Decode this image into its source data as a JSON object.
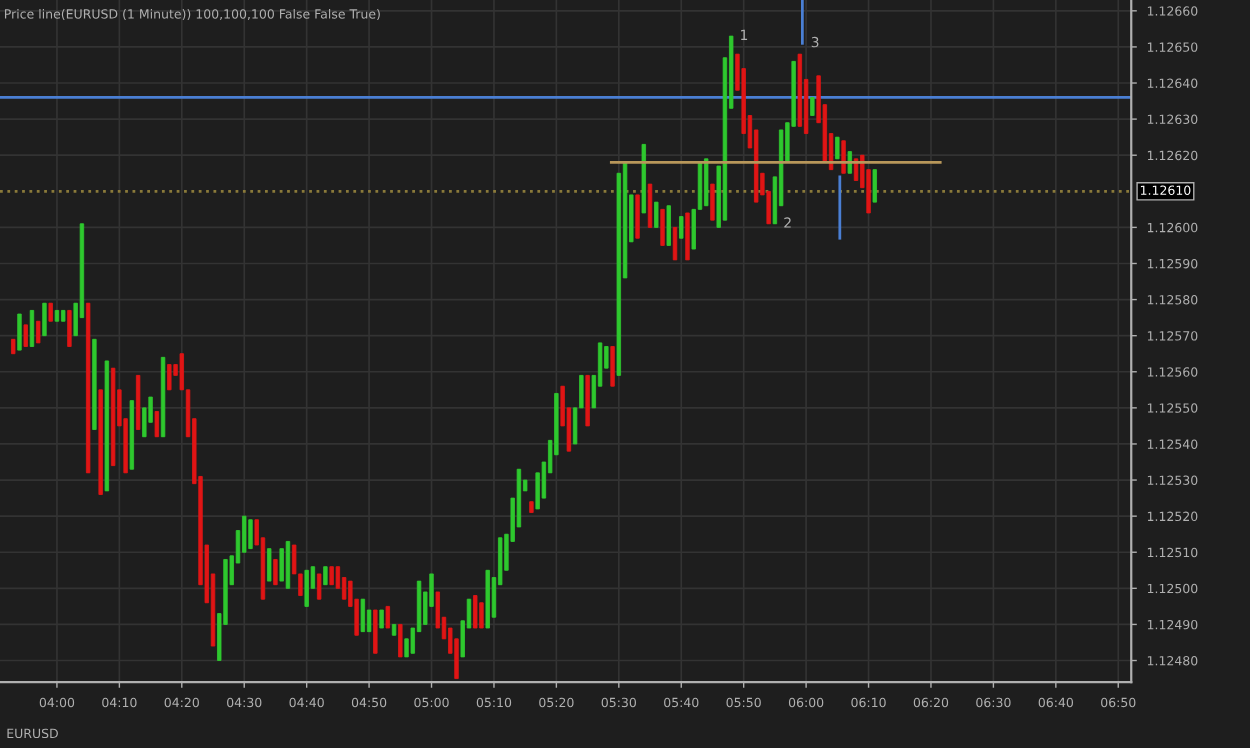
{
  "chart_data": {
    "type": "candlestick",
    "title": "Price line(EURUSD (1 Minute)) 100,100,100 False False True)",
    "colors": [
      "#e01515",
      "#2ec82e",
      "#e01515",
      "#2ec82e",
      "#e01515",
      "#2ec82e",
      "#e01515",
      "#2ec82e",
      "#2ec82e",
      "#e01515",
      "#2ec82e",
      "#2ec82e",
      "#e01515",
      "#2ec82e",
      "#e01515",
      "#2ec82e",
      "#e01515",
      "#e01515",
      "#e01515",
      "#2ec82e",
      "#e01515",
      "#2ec82e",
      "#2ec82e",
      "#e01515",
      "#2ec82e",
      "#e01515",
      "#e01515",
      "#e01515",
      "#e01515",
      "#e01515",
      "#e01515",
      "#e01515",
      "#e01515",
      "#2ec82e",
      "#2ec82e",
      "#2ec82e",
      "#2ec82e",
      "#2ec82e",
      "#2ec82e",
      "#e01515",
      "#e01515",
      "#2ec82e",
      "#e01515",
      "#2ec82e",
      "#2ec82e",
      "#e01515",
      "#e01515",
      "#2ec82e",
      "#2ec82e",
      "#e01515",
      "#2ec82e",
      "#e01515",
      "#e01515",
      "#e01515",
      "#e01515",
      "#e01515",
      "#2ec82e",
      "#2ec82e",
      "#e01515",
      "#2ec82e",
      "#e01515",
      "#2ec82e",
      "#e01515",
      "#2ec82e",
      "#2ec82e",
      "#2ec82e",
      "#2ec82e",
      "#2ec82e",
      "#e01515",
      "#e01515",
      "#e01515",
      "#e01515",
      "#2ec82e",
      "#2ec82e",
      "#e01515",
      "#e01515",
      "#2ec82e",
      "#2ec82e",
      "#2ec82e",
      "#2ec82e",
      "#2ec82e",
      "#2ec82e",
      "#2ec82e",
      "#e01515",
      "#2ec82e",
      "#2ec82e",
      "#2ec82e",
      "#2ec82e",
      "#e01515",
      "#e01515",
      "#2ec82e",
      "#2ec82e",
      "#e01515",
      "#2ec82e",
      "#2ec82e",
      "#2ec82e",
      "#e01515",
      "#2ec82e",
      "#2ec82e",
      "#2ec82e",
      "#e01515",
      "#2ec82e",
      "#e01515",
      "#2ec82e",
      "#e01515",
      "#2ec82e",
      "#e01515",
      "#2ec82e",
      "#e01515",
      "#2ec82e",
      "#2ec82e",
      "#2ec82e",
      "#e01515",
      "#2ec82e",
      "#2ec82e",
      "#2ec82e",
      "#e01515",
      "#e01515",
      "#e01515",
      "#e01515",
      "#e01515",
      "#e01515",
      "#2ec82e",
      "#2ec82e",
      "#2ec82e",
      "#2ec82e",
      "#e01515",
      "#e01515",
      "#2ec82e",
      "#e01515",
      "#e01515",
      "#e01515",
      "#2ec82e",
      "#e01515",
      "#2ec82e",
      "#e01515",
      "#e01515",
      "#e01515",
      "#2ec82e"
    ],
    "x": [
      3.8833,
      3.9,
      3.9167,
      3.9333,
      3.95,
      3.9667,
      3.9833,
      4.0,
      4.0167,
      4.0333,
      4.05,
      4.0667,
      4.0833,
      4.1,
      4.1167,
      4.1333,
      4.15,
      4.1667,
      4.1833,
      4.2,
      4.2167,
      4.2333,
      4.25,
      4.2667,
      4.2833,
      4.3,
      4.3167,
      4.3333,
      4.35,
      4.3667,
      4.3833,
      4.4,
      4.4167,
      4.4333,
      4.45,
      4.4667,
      4.4833,
      4.5,
      4.5167,
      4.5333,
      4.55,
      4.5667,
      4.5833,
      4.6,
      4.6167,
      4.6333,
      4.65,
      4.6667,
      4.6833,
      4.7,
      4.7167,
      4.7333,
      4.75,
      4.7667,
      4.7833,
      4.8,
      4.8167,
      4.8333,
      4.85,
      4.8667,
      4.8833,
      4.9,
      4.9167,
      4.9333,
      4.95,
      4.9667,
      4.9833,
      5.0,
      5.0167,
      5.0333,
      5.05,
      5.0667,
      5.0833,
      5.1,
      5.1167,
      5.1333,
      5.15,
      5.1667,
      5.1833,
      5.2,
      5.2167,
      5.2333,
      5.25,
      5.2667,
      5.2833,
      5.3,
      5.3167,
      5.3333,
      5.35,
      5.3667,
      5.3833,
      5.4,
      5.4167,
      5.4333,
      5.45,
      5.4667,
      5.4833,
      5.5,
      5.5167,
      5.5333,
      5.55,
      5.5667,
      5.5833,
      5.6,
      5.6167,
      5.6333,
      5.65,
      5.6667,
      5.6833,
      5.7,
      5.7167,
      5.7333,
      5.75,
      5.7667,
      5.7833,
      5.8,
      5.8167,
      5.8333,
      5.85,
      5.8667,
      5.8833,
      5.9,
      5.9167,
      5.9333,
      5.95,
      5.9667,
      5.9833,
      6.0,
      6.0167,
      6.0333,
      6.05,
      6.0667,
      6.0833,
      6.1,
      6.1167,
      6.1333,
      6.15,
      6.1667,
      6.1833
    ],
    "ohlc": [
      [
        1.12569,
        1.12569,
        1.12565,
        1.12565
      ],
      [
        1.12566,
        1.12576,
        1.12566,
        1.12576
      ],
      [
        1.12573,
        1.12573,
        1.12567,
        1.12567
      ],
      [
        1.12567,
        1.12577,
        1.12567,
        1.12577
      ],
      [
        1.12574,
        1.12574,
        1.12568,
        1.12568
      ],
      [
        1.1257,
        1.12579,
        1.1257,
        1.12579
      ],
      [
        1.12579,
        1.12579,
        1.12574,
        1.12574
      ],
      [
        1.12574,
        1.12577,
        1.12574,
        1.12577
      ],
      [
        1.12574,
        1.12577,
        1.12574,
        1.12577
      ],
      [
        1.12577,
        1.12577,
        1.12567,
        1.12567
      ],
      [
        1.1257,
        1.12579,
        1.1257,
        1.12579
      ],
      [
        1.12575,
        1.12601,
        1.12575,
        1.12601
      ],
      [
        1.12579,
        1.12579,
        1.12532,
        1.12532
      ],
      [
        1.12544,
        1.12569,
        1.12544,
        1.12569
      ],
      [
        1.12555,
        1.12555,
        1.12526,
        1.12526
      ],
      [
        1.12527,
        1.12563,
        1.12527,
        1.12563
      ],
      [
        1.12561,
        1.12561,
        1.12534,
        1.12534
      ],
      [
        1.12555,
        1.12555,
        1.12545,
        1.12545
      ],
      [
        1.12547,
        1.12547,
        1.12532,
        1.12532
      ],
      [
        1.12533,
        1.12552,
        1.12533,
        1.12552
      ],
      [
        1.12559,
        1.12559,
        1.12544,
        1.12544
      ],
      [
        1.12542,
        1.1255,
        1.12542,
        1.1255
      ],
      [
        1.12546,
        1.12553,
        1.12546,
        1.12553
      ],
      [
        1.12549,
        1.12549,
        1.12542,
        1.12542
      ],
      [
        1.12542,
        1.12564,
        1.12542,
        1.12564
      ],
      [
        1.12562,
        1.12562,
        1.12555,
        1.12555
      ],
      [
        1.12562,
        1.12562,
        1.12559,
        1.12559
      ],
      [
        1.12565,
        1.12565,
        1.12555,
        1.12555
      ],
      [
        1.12555,
        1.12555,
        1.12542,
        1.12542
      ],
      [
        1.12547,
        1.12547,
        1.12529,
        1.12529
      ],
      [
        1.12531,
        1.12531,
        1.12501,
        1.12501
      ],
      [
        1.12512,
        1.12512,
        1.12496,
        1.12496
      ],
      [
        1.12504,
        1.12504,
        1.12484,
        1.12484
      ],
      [
        1.1248,
        1.12493,
        1.1248,
        1.12493
      ],
      [
        1.1249,
        1.12508,
        1.1249,
        1.12508
      ],
      [
        1.12501,
        1.12509,
        1.12501,
        1.12509
      ],
      [
        1.12507,
        1.12516,
        1.12507,
        1.12516
      ],
      [
        1.1251,
        1.1252,
        1.1251,
        1.1252
      ],
      [
        1.12511,
        1.12519,
        1.12511,
        1.12519
      ],
      [
        1.12519,
        1.12519,
        1.12512,
        1.12512
      ],
      [
        1.12514,
        1.12514,
        1.12497,
        1.12497
      ],
      [
        1.12502,
        1.12511,
        1.12502,
        1.12511
      ],
      [
        1.12508,
        1.12508,
        1.12501,
        1.12501
      ],
      [
        1.12502,
        1.12511,
        1.12502,
        1.12511
      ],
      [
        1.125,
        1.12513,
        1.125,
        1.12513
      ],
      [
        1.12512,
        1.12512,
        1.12504,
        1.12504
      ],
      [
        1.12504,
        1.12504,
        1.12498,
        1.12498
      ],
      [
        1.12495,
        1.12505,
        1.12495,
        1.12505
      ],
      [
        1.125,
        1.12506,
        1.125,
        1.12506
      ],
      [
        1.12504,
        1.12504,
        1.12497,
        1.12497
      ],
      [
        1.12501,
        1.12506,
        1.12501,
        1.12506
      ],
      [
        1.12506,
        1.12506,
        1.12501,
        1.12501
      ],
      [
        1.12506,
        1.12506,
        1.125,
        1.125
      ],
      [
        1.12503,
        1.12503,
        1.12497,
        1.12497
      ],
      [
        1.12502,
        1.12502,
        1.12495,
        1.12495
      ],
      [
        1.12497,
        1.12497,
        1.12487,
        1.12487
      ],
      [
        1.12488,
        1.12497,
        1.12488,
        1.12497
      ],
      [
        1.12488,
        1.12494,
        1.12488,
        1.12494
      ],
      [
        1.12494,
        1.12494,
        1.12482,
        1.12482
      ],
      [
        1.12489,
        1.12494,
        1.12489,
        1.12494
      ],
      [
        1.12495,
        1.12495,
        1.12489,
        1.12489
      ],
      [
        1.12487,
        1.1249,
        1.12487,
        1.1249
      ],
      [
        1.1249,
        1.1249,
        1.12481,
        1.12481
      ],
      [
        1.12481,
        1.12486,
        1.12481,
        1.12486
      ],
      [
        1.12482,
        1.12489,
        1.12482,
        1.12489
      ],
      [
        1.12488,
        1.12502,
        1.12488,
        1.12502
      ],
      [
        1.1249,
        1.12499,
        1.1249,
        1.12499
      ],
      [
        1.12495,
        1.12504,
        1.12495,
        1.12504
      ],
      [
        1.12499,
        1.12499,
        1.12489,
        1.12489
      ],
      [
        1.12492,
        1.12492,
        1.12486,
        1.12486
      ],
      [
        1.12489,
        1.12489,
        1.12482,
        1.12482
      ],
      [
        1.12486,
        1.12486,
        1.12475,
        1.12475
      ],
      [
        1.12481,
        1.12491,
        1.12481,
        1.12491
      ],
      [
        1.12489,
        1.12497,
        1.12489,
        1.12497
      ],
      [
        1.12498,
        1.12498,
        1.12489,
        1.12489
      ],
      [
        1.12496,
        1.12496,
        1.12489,
        1.12489
      ],
      [
        1.12489,
        1.12505,
        1.12489,
        1.12505
      ],
      [
        1.12492,
        1.12503,
        1.12492,
        1.12503
      ],
      [
        1.12501,
        1.12514,
        1.12501,
        1.12514
      ],
      [
        1.12505,
        1.12515,
        1.12505,
        1.12515
      ],
      [
        1.12513,
        1.12525,
        1.12513,
        1.12525
      ],
      [
        1.12517,
        1.12533,
        1.12517,
        1.12533
      ],
      [
        1.12527,
        1.1253,
        1.12527,
        1.1253
      ],
      [
        1.12524,
        1.12524,
        1.12521,
        1.12521
      ],
      [
        1.12522,
        1.12532,
        1.12522,
        1.12532
      ],
      [
        1.12525,
        1.12535,
        1.12525,
        1.12535
      ],
      [
        1.12532,
        1.12541,
        1.12532,
        1.12541
      ],
      [
        1.12537,
        1.12554,
        1.12537,
        1.12554
      ],
      [
        1.12556,
        1.12556,
        1.12545,
        1.12545
      ],
      [
        1.1255,
        1.1255,
        1.12538,
        1.12538
      ],
      [
        1.1254,
        1.1255,
        1.1254,
        1.1255
      ],
      [
        1.1255,
        1.12559,
        1.1255,
        1.12559
      ],
      [
        1.12559,
        1.12559,
        1.12545,
        1.12545
      ],
      [
        1.1255,
        1.12559,
        1.1255,
        1.12559
      ],
      [
        1.12556,
        1.12568,
        1.12556,
        1.12568
      ],
      [
        1.12561,
        1.12567,
        1.12561,
        1.12567
      ],
      [
        1.12567,
        1.12567,
        1.12556,
        1.12556
      ],
      [
        1.12559,
        1.12615,
        1.12559,
        1.12615
      ],
      [
        1.12586,
        1.12618,
        1.12586,
        1.12618
      ],
      [
        1.12596,
        1.12609,
        1.12596,
        1.12609
      ],
      [
        1.12609,
        1.12609,
        1.12597,
        1.12597
      ],
      [
        1.12604,
        1.12623,
        1.12604,
        1.12623
      ],
      [
        1.12612,
        1.12612,
        1.126,
        1.126
      ],
      [
        1.126,
        1.12607,
        1.126,
        1.12607
      ],
      [
        1.12605,
        1.12605,
        1.12595,
        1.12595
      ],
      [
        1.12595,
        1.12606,
        1.12595,
        1.12606
      ],
      [
        1.126,
        1.126,
        1.12591,
        1.12591
      ],
      [
        1.12597,
        1.12603,
        1.12597,
        1.12603
      ],
      [
        1.12604,
        1.12604,
        1.12591,
        1.12591
      ],
      [
        1.12594,
        1.12605,
        1.12594,
        1.12605
      ],
      [
        1.12605,
        1.12618,
        1.12605,
        1.12618
      ],
      [
        1.12606,
        1.12619,
        1.12606,
        1.12619
      ],
      [
        1.12612,
        1.12612,
        1.12602,
        1.12602
      ],
      [
        1.126,
        1.12617,
        1.126,
        1.12617
      ],
      [
        1.12602,
        1.12647,
        1.12602,
        1.12647
      ],
      [
        1.12633,
        1.12653,
        1.12633,
        1.12653
      ],
      [
        1.12648,
        1.12648,
        1.12638,
        1.12638
      ],
      [
        1.12644,
        1.12644,
        1.12626,
        1.12626
      ],
      [
        1.12631,
        1.12631,
        1.12622,
        1.12622
      ],
      [
        1.12627,
        1.12627,
        1.12607,
        1.12607
      ],
      [
        1.12615,
        1.12615,
        1.12609,
        1.12609
      ],
      [
        1.1261,
        1.1261,
        1.12601,
        1.12601
      ],
      [
        1.12601,
        1.12614,
        1.12601,
        1.12614
      ],
      [
        1.12606,
        1.12627,
        1.12606,
        1.12627
      ],
      [
        1.12618,
        1.12629,
        1.12618,
        1.12629
      ],
      [
        1.12628,
        1.12646,
        1.12628,
        1.12646
      ],
      [
        1.12648,
        1.12648,
        1.12628,
        1.12628
      ],
      [
        1.12641,
        1.12641,
        1.12626,
        1.12626
      ],
      [
        1.12631,
        1.12636,
        1.12631,
        1.12636
      ],
      [
        1.12642,
        1.12642,
        1.12629,
        1.12629
      ],
      [
        1.12634,
        1.12634,
        1.12618,
        1.12618
      ],
      [
        1.12626,
        1.12626,
        1.12616,
        1.12616
      ],
      [
        1.12619,
        1.12625,
        1.12619,
        1.12625
      ],
      [
        1.12624,
        1.12624,
        1.12615,
        1.12615
      ],
      [
        1.12615,
        1.12621,
        1.12615,
        1.12621
      ],
      [
        1.12619,
        1.12619,
        1.12613,
        1.12613
      ],
      [
        1.1262,
        1.1262,
        1.12611,
        1.12611
      ],
      [
        1.12616,
        1.12616,
        1.12604,
        1.12604
      ],
      [
        1.12607,
        1.12616,
        1.12607,
        1.12616
      ]
    ],
    "series": [
      {
        "type": "line",
        "color": "#b8975a",
        "x": [
          5.48,
          6.358
        ],
        "values": [
          1.12618,
          1.12618
        ]
      },
      {
        "type": "line",
        "color": "#4a7fd4",
        "x": [
          5.99,
          5.99
        ],
        "values": [
          1.12663,
          1.12651
        ]
      },
      {
        "type": "line",
        "color": "#4a7fd4",
        "x": [
          6.09,
          6.09
        ],
        "values": [
          1.12597,
          1.12614
        ]
      }
    ],
    "ref_lines": [
      {
        "axis": "y",
        "value": 1.12636,
        "color": "#4a7fd4",
        "line_style": "solid"
      },
      {
        "axis": "y",
        "value": 1.1261,
        "label": "1.12610",
        "color": "#8a7a3a",
        "line_style": "dotted"
      }
    ],
    "annotations": [
      {
        "text": "1",
        "x": 5.8,
        "y": 1.12653
      },
      {
        "text": "3",
        "x": 5.99,
        "y": 1.12651
      },
      {
        "text": "2",
        "x": 5.9167,
        "y": 1.12601
      },
      "EURUSD"
    ],
    "xlim": [
      3.848,
      6.868
    ],
    "xticks": [
      {
        "value": 4.0,
        "label": "04:00"
      },
      {
        "value": 4.1667,
        "label": "04:10"
      },
      {
        "value": 4.3333,
        "label": "04:20"
      },
      {
        "value": 4.5,
        "label": "04:30"
      },
      {
        "value": 4.6667,
        "label": "04:40"
      },
      {
        "value": 4.8333,
        "label": "04:50"
      },
      {
        "value": 5.0,
        "label": "05:00"
      },
      {
        "value": 5.1667,
        "label": "05:10"
      },
      {
        "value": 5.3333,
        "label": "05:20"
      },
      {
        "value": 5.5,
        "label": "05:30"
      },
      {
        "value": 5.6667,
        "label": "05:40"
      },
      {
        "value": 5.8333,
        "label": "05:50"
      },
      {
        "value": 6.0,
        "label": "06:00"
      },
      {
        "value": 6.1667,
        "label": "06:10"
      },
      {
        "value": 6.3333,
        "label": "06:20"
      },
      {
        "value": 6.5,
        "label": "06:30"
      },
      {
        "value": 6.6667,
        "label": "06:40"
      },
      {
        "value": 6.8333,
        "label": "06:50"
      }
    ],
    "ylim": [
      1.12474,
      1.12663
    ],
    "yticks": [
      {
        "value": 1.1248,
        "label": "1.12480"
      },
      {
        "value": 1.1249,
        "label": "1.12490"
      },
      {
        "value": 1.125,
        "label": "1.12500"
      },
      {
        "value": 1.1251,
        "label": "1.12510"
      },
      {
        "value": 1.1252,
        "label": "1.12520"
      },
      {
        "value": 1.1253,
        "label": "1.12530"
      },
      {
        "value": 1.1254,
        "label": "1.12540"
      },
      {
        "value": 1.1255,
        "label": "1.12550"
      },
      {
        "value": 1.1256,
        "label": "1.12560"
      },
      {
        "value": 1.1257,
        "label": "1.12570"
      },
      {
        "value": 1.1258,
        "label": "1.12580"
      },
      {
        "value": 1.1259,
        "label": "1.12590"
      },
      {
        "value": 1.126,
        "label": "1.12600"
      },
      {
        "value": 1.1262,
        "label": "1.12620"
      },
      {
        "value": 1.1263,
        "label": "1.12630"
      },
      {
        "value": 1.1264,
        "label": "1.12640"
      },
      {
        "value": 1.1265,
        "label": "1.12650"
      },
      {
        "value": 1.1266,
        "label": "1.12660"
      }
    ],
    "grid": true
  }
}
